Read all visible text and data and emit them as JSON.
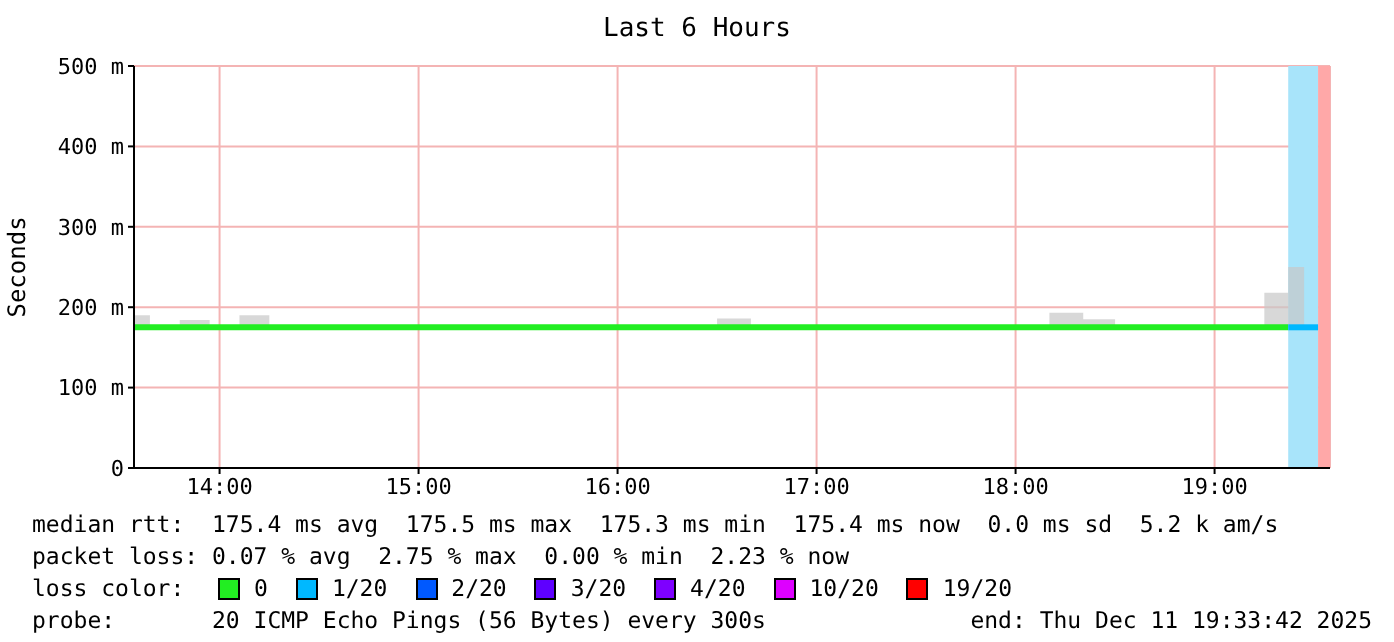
{
  "chart_data": {
    "type": "step",
    "title": "Last 6 Hours",
    "ylabel": "Seconds",
    "legend_title": "loss color:",
    "x": [
      13.57,
      13.65,
      13.8,
      13.95,
      14.1,
      14.25,
      16.5,
      16.67,
      18.17,
      18.34,
      18.5,
      19.25,
      19.37,
      19.45,
      19.52
    ],
    "series": [
      {
        "name": "0",
        "color": "#22ee22",
        "values": [
          175,
          175,
          175,
          175,
          175,
          175,
          175,
          175,
          175,
          175,
          175,
          175,
          175,
          null,
          null
        ],
        "lower": [
          175,
          175,
          175,
          175,
          175,
          175,
          175,
          175,
          175,
          175,
          175,
          175,
          175,
          null,
          null
        ],
        "upper": [
          190,
          175,
          184,
          175,
          190,
          175,
          186,
          175,
          193,
          185,
          175,
          218,
          218,
          null,
          null
        ]
      },
      {
        "name": "1/20",
        "color": "#00b8ff",
        "values": [
          null,
          null,
          null,
          null,
          null,
          null,
          null,
          null,
          null,
          null,
          null,
          null,
          175,
          175,
          175
        ],
        "lower": [
          null,
          null,
          null,
          null,
          null,
          null,
          null,
          null,
          null,
          null,
          null,
          null,
          175,
          175,
          175
        ],
        "upper": [
          null,
          null,
          null,
          null,
          null,
          null,
          null,
          null,
          null,
          null,
          null,
          null,
          250,
          175,
          175
        ]
      },
      {
        "name": "2/20",
        "color": "#0059ff",
        "values": [
          null,
          null,
          null,
          null,
          null,
          null,
          null,
          null,
          null,
          null,
          null,
          null,
          null,
          null,
          null
        ]
      },
      {
        "name": "3/20",
        "color": "#5e00ff",
        "values": [
          null,
          null,
          null,
          null,
          null,
          null,
          null,
          null,
          null,
          null,
          null,
          null,
          null,
          null,
          null
        ]
      },
      {
        "name": "4/20",
        "color": "#7e00ff",
        "values": [
          null,
          null,
          null,
          null,
          null,
          null,
          null,
          null,
          null,
          null,
          null,
          null,
          null,
          null,
          null
        ]
      },
      {
        "name": "10/20",
        "color": "#dd00ff",
        "values": [
          null,
          null,
          null,
          null,
          null,
          null,
          null,
          null,
          null,
          null,
          null,
          null,
          null,
          null,
          null
        ]
      },
      {
        "name": "19/20",
        "color": "#ff0000",
        "values": [
          null,
          null,
          null,
          null,
          null,
          null,
          null,
          null,
          null,
          null,
          null,
          null,
          null,
          null,
          null
        ]
      }
    ],
    "bands": [
      {
        "axis": "x",
        "from": 19.37,
        "to": 19.52,
        "color": "#a8e4fa"
      },
      {
        "axis": "x",
        "from": 19.52,
        "to": 19.58,
        "color": "#ffa8a8"
      }
    ],
    "xlim": [
      13.57,
      19.58
    ],
    "xticks": [
      {
        "value": 14,
        "label": "14:00"
      },
      {
        "value": 15,
        "label": "15:00"
      },
      {
        "value": 16,
        "label": "16:00"
      },
      {
        "value": 17,
        "label": "17:00"
      },
      {
        "value": 18,
        "label": "18:00"
      },
      {
        "value": 19,
        "label": "19:00"
      }
    ],
    "ylim": [
      0,
      500
    ],
    "yticks": [
      0,
      {
        "value": 100,
        "label": "100 m"
      },
      {
        "value": 200,
        "label": "200 m"
      },
      {
        "value": 300,
        "label": "300 m"
      },
      {
        "value": 400,
        "label": "400 m"
      },
      {
        "value": 500,
        "label": "500 m"
      }
    ],
    "grid": true,
    "legend": "bottom",
    "marker": "none",
    "annotations": [
      "median rtt:  175.4 ms avg  175.5 ms max  175.3 ms min  175.4 ms now  0.0 ms sd  5.2 k am/s",
      "packet loss: 0.07 % avg  2.75 % max  0.00 % min  2.23 % now",
      "probe:       20 ICMP Echo Pings (56 Bytes) every 300s",
      "end: Thu Dec 11 19:33:42 2025"
    ]
  }
}
